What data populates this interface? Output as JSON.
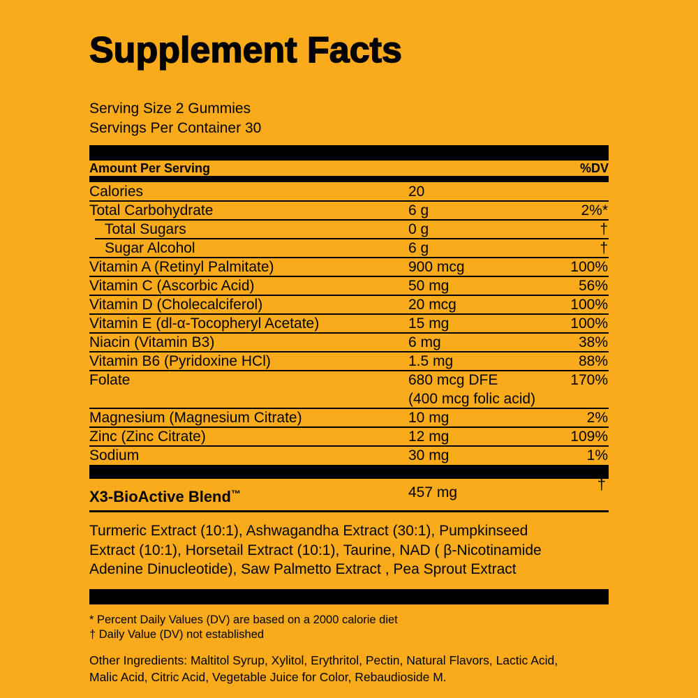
{
  "colors": {
    "background": "#FAAB1C",
    "ink": "#000000",
    "divider": "#000000"
  },
  "title": "Supplement Facts",
  "serving": {
    "size_line": "Serving Size 2 Gummies",
    "container_line": "Servings Per Container 30"
  },
  "table": {
    "header": {
      "left": "Amount Per Serving",
      "right": "%DV"
    },
    "rows": [
      {
        "name": "Calories",
        "amount": "20",
        "dv": "",
        "indent": false
      },
      {
        "name": "Total Carbohydrate",
        "amount": "6 g",
        "dv": "2%*",
        "indent": false
      },
      {
        "name": "Total Sugars",
        "amount": "0 g",
        "dv": "†",
        "indent": true
      },
      {
        "name": "Sugar Alcohol",
        "amount": "6 g",
        "dv": "†",
        "indent": true
      },
      {
        "name": "Vitamin A (Retinyl Palmitate)",
        "amount": "900 mcg",
        "dv": "100%",
        "indent": false
      },
      {
        "name": "Vitamin C (Ascorbic Acid)",
        "amount": "50 mg",
        "dv": "56%",
        "indent": false
      },
      {
        "name": "Vitamin D (Cholecalciferol)",
        "amount": "20 mcg",
        "dv": "100%",
        "indent": false
      },
      {
        "name": "Vitamin E (dl-α-Tocopheryl Acetate)",
        "amount": "15 mg",
        "dv": "100%",
        "indent": false
      },
      {
        "name": "Niacin (Vitamin B3)",
        "amount": "6 mg",
        "dv": "38%",
        "indent": false
      },
      {
        "name": "Vitamin B6 (Pyridoxine HCl)",
        "amount": "1.5 mg",
        "dv": "88%",
        "indent": false
      },
      {
        "name": "Folate",
        "amount": "680 mcg DFE",
        "amount2": "(400 mcg folic acid)",
        "dv": "170%",
        "indent": false
      },
      {
        "name": "Magnesium (Magnesium Citrate)",
        "amount": "10 mg",
        "dv": "2%",
        "indent": false
      },
      {
        "name": "Zinc (Zinc Citrate)",
        "amount": "12 mg",
        "dv": "109%",
        "indent": false
      },
      {
        "name": "Sodium",
        "amount": "30 mg",
        "dv": "1%",
        "indent": false
      }
    ]
  },
  "blend": {
    "name": "X3-BioActive Blend",
    "trademark": "™",
    "amount": "457 mg",
    "dv": "†",
    "ingredients_lines": [
      "Turmeric Extract (10:1),  Ashwagandha Extract (30:1),  Pumpkinseed",
      "Extract (10:1),  Horsetail Extract (10:1),  Taurine,  NAD ( β-Nicotinamide",
      "Adenine Dinucleotide), Saw Palmetto Extract ,  Pea Sprout Extract"
    ]
  },
  "footnotes": [
    "* Percent Daily Values (DV) are based on a 2000 calorie diet",
    "† Daily Value (DV) not established"
  ],
  "other_ingredients_lines": [
    "Other Ingredients: Maltitol Syrup, Xylitol, Erythritol, Pectin, Natural Flavors, Lactic Acid,",
    "Malic Acid, Citric Acid, Vegetable Juice for Color, Rebaudioside M."
  ]
}
